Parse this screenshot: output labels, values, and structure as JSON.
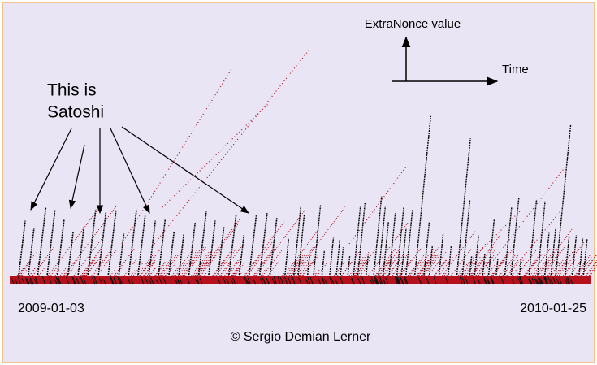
{
  "axis_legend": {
    "y_label": "ExtraNonce value",
    "x_label": "Time"
  },
  "annotation": {
    "lines": [
      "This is",
      "Satoshi"
    ]
  },
  "dates": {
    "start": "2009-01-03",
    "end": "2010-01-25"
  },
  "credit": "© Sergio Demian Lerner"
}
